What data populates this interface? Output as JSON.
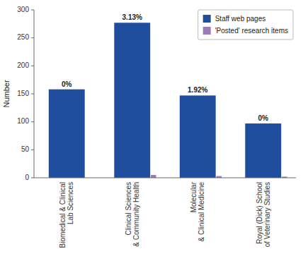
{
  "chart_data": {
    "type": "bar",
    "categories": [
      "Biomedical & Clinical\nLab Sciences",
      "Clinical Sciences\n& Community Health",
      "Molecular\n& Clinical Medicine",
      "Royal (Dick) School\nof Veterinary Studies"
    ],
    "series": [
      {
        "name": "Staff web pages",
        "color": "#1f4e9e",
        "values": [
          158,
          277,
          147,
          97
        ]
      },
      {
        "name": "'Posted' research items",
        "color": "#9b7bb8",
        "values": [
          0,
          5,
          3,
          2
        ]
      }
    ],
    "annotations": [
      "0%",
      "3.13%",
      "1.92%",
      "0%"
    ],
    "ylabel": "Number",
    "ylim": [
      0,
      300
    ],
    "yticks": [
      0,
      50,
      100,
      150,
      200,
      250,
      300
    ],
    "grid": false,
    "legend": "upper right"
  }
}
